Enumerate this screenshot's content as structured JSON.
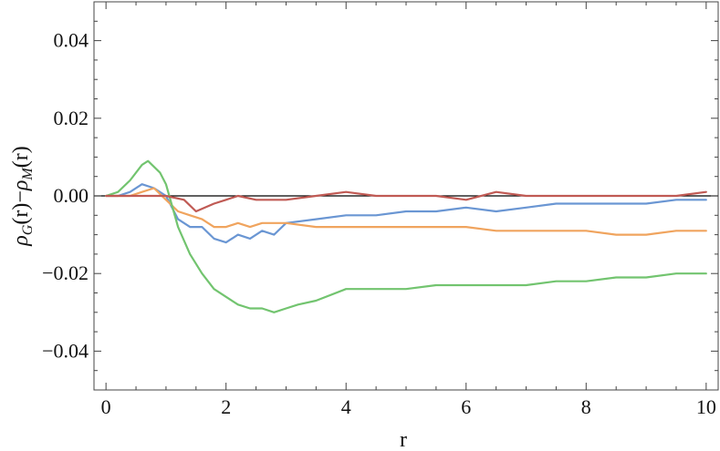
{
  "chart_data": {
    "type": "line",
    "xlabel": "r",
    "ylabel": "ρ_G(r)−ρ_M(r)",
    "ylabel_parts": {
      "rho1": "ρ",
      "sub1": "G",
      "mid": "(r)−",
      "rho2": "ρ",
      "sub2": "M",
      "end": "(r)"
    },
    "xlim": [
      -0.2,
      10.2
    ],
    "ylim": [
      -0.05,
      0.05
    ],
    "x_ticks": [
      0,
      2,
      4,
      6,
      8,
      10
    ],
    "x_tick_labels": [
      "0",
      "2",
      "4",
      "6",
      "8",
      "10"
    ],
    "y_ticks": [
      -0.04,
      -0.02,
      0.0,
      0.02,
      0.04
    ],
    "y_tick_labels": [
      "−0.04",
      "−0.02",
      "0.00",
      "0.02",
      "0.04"
    ],
    "grid": false,
    "zero_line": true,
    "series": [
      {
        "color": "#6a96d3",
        "x": [
          0,
          0.2,
          0.4,
          0.6,
          0.8,
          1.0,
          1.2,
          1.4,
          1.6,
          1.8,
          2.0,
          2.2,
          2.4,
          2.6,
          2.8,
          3.0,
          3.5,
          4.0,
          4.5,
          5.0,
          5.5,
          6.0,
          6.5,
          7.0,
          7.5,
          8.0,
          8.5,
          9.0,
          9.5,
          10.0
        ],
        "y": [
          0.0,
          0.0,
          0.001,
          0.003,
          0.002,
          0.0,
          -0.006,
          -0.008,
          -0.008,
          -0.011,
          -0.012,
          -0.01,
          -0.011,
          -0.009,
          -0.01,
          -0.007,
          -0.006,
          -0.005,
          -0.005,
          -0.004,
          -0.004,
          -0.003,
          -0.004,
          -0.003,
          -0.002,
          -0.002,
          -0.002,
          -0.002,
          -0.001,
          -0.001
        ]
      },
      {
        "color": "#f0a45e",
        "x": [
          0,
          0.2,
          0.4,
          0.6,
          0.8,
          1.0,
          1.2,
          1.4,
          1.6,
          1.8,
          2.0,
          2.2,
          2.4,
          2.6,
          2.8,
          3.0,
          3.5,
          4.0,
          4.5,
          5.0,
          5.5,
          6.0,
          6.5,
          7.0,
          7.5,
          8.0,
          8.5,
          9.0,
          9.5,
          10.0
        ],
        "y": [
          0.0,
          0.0,
          0.0,
          0.001,
          0.002,
          -0.001,
          -0.004,
          -0.005,
          -0.006,
          -0.008,
          -0.008,
          -0.007,
          -0.008,
          -0.007,
          -0.007,
          -0.007,
          -0.008,
          -0.008,
          -0.008,
          -0.008,
          -0.008,
          -0.008,
          -0.009,
          -0.009,
          -0.009,
          -0.009,
          -0.01,
          -0.01,
          -0.009,
          -0.009
        ]
      },
      {
        "color": "#72c46f",
        "x": [
          0,
          0.2,
          0.4,
          0.6,
          0.7,
          0.9,
          1.0,
          1.2,
          1.4,
          1.6,
          1.8,
          2.0,
          2.2,
          2.4,
          2.6,
          2.8,
          3.0,
          3.2,
          3.5,
          4.0,
          4.5,
          5.0,
          5.5,
          6.0,
          6.5,
          7.0,
          7.5,
          8.0,
          8.5,
          9.0,
          9.5,
          10.0
        ],
        "y": [
          0.0,
          0.001,
          0.004,
          0.008,
          0.009,
          0.006,
          0.003,
          -0.008,
          -0.015,
          -0.02,
          -0.024,
          -0.026,
          -0.028,
          -0.029,
          -0.029,
          -0.03,
          -0.029,
          -0.028,
          -0.027,
          -0.024,
          -0.024,
          -0.024,
          -0.023,
          -0.023,
          -0.023,
          -0.023,
          -0.022,
          -0.022,
          -0.021,
          -0.021,
          -0.02,
          -0.02
        ]
      },
      {
        "color": "#c05a54",
        "x": [
          0,
          0.5,
          1.0,
          1.3,
          1.5,
          1.8,
          2.0,
          2.2,
          2.5,
          3.0,
          3.5,
          4.0,
          4.5,
          5.0,
          5.5,
          6.0,
          6.5,
          7.0,
          7.5,
          8.0,
          8.5,
          9.0,
          9.5,
          10.0
        ],
        "y": [
          0.0,
          0.0,
          0.0,
          -0.001,
          -0.004,
          -0.002,
          -0.001,
          0.0,
          -0.001,
          -0.001,
          0.0,
          0.001,
          0.0,
          0.0,
          0.0,
          -0.001,
          0.001,
          0.0,
          0.0,
          0.0,
          0.0,
          0.0,
          0.0,
          0.001
        ]
      }
    ]
  }
}
